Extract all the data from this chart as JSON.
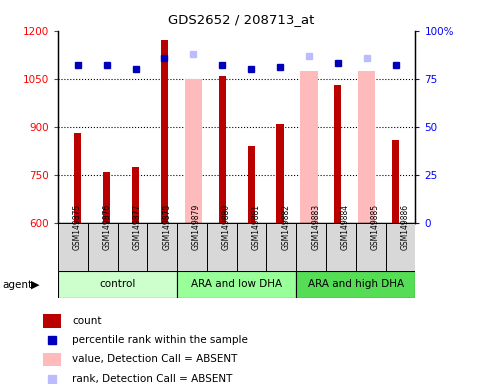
{
  "title": "GDS2652 / 208713_at",
  "samples": [
    "GSM149875",
    "GSM149876",
    "GSM149877",
    "GSM149878",
    "GSM149879",
    "GSM149880",
    "GSM149881",
    "GSM149882",
    "GSM149883",
    "GSM149884",
    "GSM149885",
    "GSM149886"
  ],
  "groups": [
    {
      "label": "control",
      "color": "#ccffcc",
      "start": 0,
      "end": 4
    },
    {
      "label": "ARA and low DHA",
      "color": "#99ff99",
      "start": 4,
      "end": 8
    },
    {
      "label": "ARA and high DHA",
      "color": "#55dd55",
      "start": 8,
      "end": 12
    }
  ],
  "count_values": [
    880,
    760,
    775,
    1170,
    null,
    1060,
    840,
    910,
    null,
    1030,
    null,
    860
  ],
  "absent_value_bars": [
    null,
    null,
    null,
    null,
    1050,
    null,
    null,
    null,
    1075,
    null,
    1075,
    null
  ],
  "percentile_rank": [
    82,
    82,
    80,
    86,
    null,
    82,
    80,
    81,
    null,
    83,
    null,
    82
  ],
  "absent_rank_dots": [
    null,
    null,
    null,
    null,
    88,
    null,
    null,
    null,
    87,
    null,
    86,
    null
  ],
  "ylim_left": [
    600,
    1200
  ],
  "ylim_right": [
    0,
    100
  ],
  "yticks_left": [
    600,
    750,
    900,
    1050,
    1200
  ],
  "yticks_right": [
    0,
    25,
    50,
    75,
    100
  ],
  "bar_color_red": "#bb0000",
  "bar_color_pink": "#ffbbbb",
  "dot_color_blue": "#0000bb",
  "dot_color_lightblue": "#bbbbff",
  "legend_items": [
    {
      "color": "#bb0000",
      "label": "count",
      "marker": "rect"
    },
    {
      "color": "#0000bb",
      "label": "percentile rank within the sample",
      "marker": "square"
    },
    {
      "color": "#ffbbbb",
      "label": "value, Detection Call = ABSENT",
      "marker": "rect"
    },
    {
      "color": "#bbbbff",
      "label": "rank, Detection Call = ABSENT",
      "marker": "square"
    }
  ]
}
